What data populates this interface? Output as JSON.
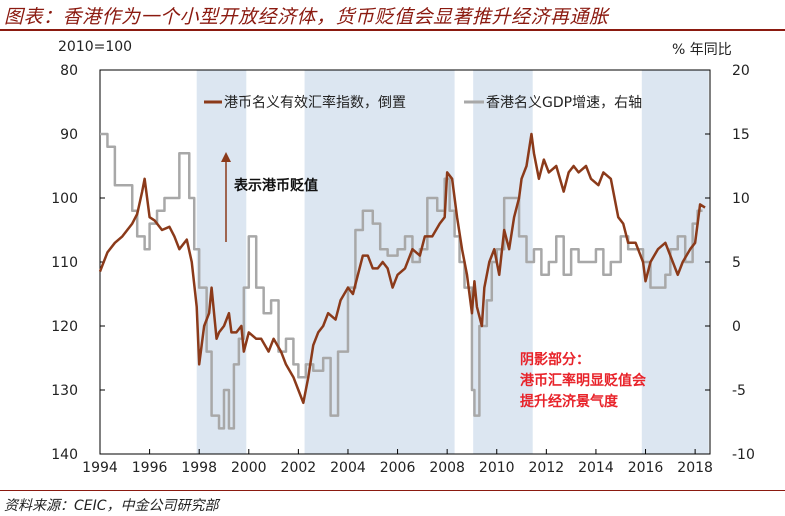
{
  "title": "图表：香港作为一个小型开放经济体，货币贬值会显著推升经济再通胀",
  "left_corner_label": "2010=100",
  "right_corner_label": "% 年同比",
  "source": "资料来源：CEIC，中金公司研究部",
  "colors": {
    "title": "#8b1a10",
    "heer": "#8b3a1a",
    "gdp": "#a8a8a8",
    "shade": "#dce6f1",
    "note": "#e8232a"
  },
  "chart_data": {
    "type": "line",
    "xlim": [
      1994,
      2018.6
    ],
    "x_ticks": [
      "1994",
      "1996",
      "1998",
      "2000",
      "2002",
      "2004",
      "2006",
      "2008",
      "2010",
      "2012",
      "2014",
      "2016",
      "2018"
    ],
    "left_axis": {
      "ylim": [
        80,
        140
      ],
      "inverted": true,
      "ticks": [
        "80",
        "90",
        "100",
        "110",
        "120",
        "130",
        "140"
      ]
    },
    "right_axis": {
      "ylim": [
        -10,
        20
      ],
      "ticks": [
        "20",
        "15",
        "10",
        "5",
        "0",
        "-5",
        "-10"
      ]
    },
    "legend": [
      "港币名义有效汇率指数，倒置",
      "香港名义GDP增速，右轴"
    ],
    "shaded_periods": [
      [
        1997.9,
        1999.9
      ],
      [
        2002.25,
        2008.3
      ],
      [
        2009.05,
        2011.45
      ],
      [
        2015.85,
        2018.55
      ]
    ],
    "annotation_arrow_label": "表示港币贬值",
    "shade_note": [
      "阴影部分：",
      "港币汇率明显贬值会",
      "提升经济景气度"
    ],
    "series": [
      {
        "name": "港币名义有效汇率指数，倒置",
        "axis": "left",
        "points": [
          [
            1994.0,
            111.5
          ],
          [
            1994.3,
            108.5
          ],
          [
            1994.6,
            107
          ],
          [
            1994.9,
            106
          ],
          [
            1995.1,
            105
          ],
          [
            1995.3,
            104
          ],
          [
            1995.5,
            102.5
          ],
          [
            1995.7,
            99
          ],
          [
            1995.8,
            97
          ],
          [
            1996.0,
            103
          ],
          [
            1996.2,
            103.5
          ],
          [
            1996.5,
            105
          ],
          [
            1996.8,
            104.5
          ],
          [
            1997.0,
            106
          ],
          [
            1997.2,
            108
          ],
          [
            1997.5,
            106.5
          ],
          [
            1997.7,
            110
          ],
          [
            1997.9,
            117
          ],
          [
            1998.0,
            126
          ],
          [
            1998.1,
            123
          ],
          [
            1998.2,
            120
          ],
          [
            1998.4,
            118
          ],
          [
            1998.5,
            114
          ],
          [
            1998.6,
            118
          ],
          [
            1998.7,
            122
          ],
          [
            1998.8,
            121
          ],
          [
            1999.0,
            120
          ],
          [
            1999.2,
            118
          ],
          [
            1999.3,
            121
          ],
          [
            1999.5,
            121
          ],
          [
            1999.7,
            120
          ],
          [
            1999.8,
            124
          ],
          [
            2000.0,
            121
          ],
          [
            2000.3,
            122
          ],
          [
            2000.5,
            122
          ],
          [
            2000.8,
            124
          ],
          [
            2001.0,
            122
          ],
          [
            2001.3,
            124
          ],
          [
            2001.5,
            126
          ],
          [
            2001.8,
            128
          ],
          [
            2002.0,
            130
          ],
          [
            2002.2,
            132
          ],
          [
            2002.4,
            128
          ],
          [
            2002.6,
            123
          ],
          [
            2002.8,
            121
          ],
          [
            2003.0,
            120
          ],
          [
            2003.2,
            118
          ],
          [
            2003.5,
            119
          ],
          [
            2003.7,
            116
          ],
          [
            2004.0,
            114
          ],
          [
            2004.2,
            115
          ],
          [
            2004.4,
            112
          ],
          [
            2004.6,
            109
          ],
          [
            2004.8,
            109
          ],
          [
            2005.0,
            111
          ],
          [
            2005.2,
            111
          ],
          [
            2005.4,
            110
          ],
          [
            2005.6,
            111
          ],
          [
            2005.8,
            114
          ],
          [
            2006.0,
            112
          ],
          [
            2006.3,
            111
          ],
          [
            2006.6,
            108
          ],
          [
            2006.9,
            109
          ],
          [
            2007.1,
            106
          ],
          [
            2007.4,
            106
          ],
          [
            2007.7,
            104
          ],
          [
            2007.9,
            103
          ],
          [
            2008.0,
            96
          ],
          [
            2008.2,
            97
          ],
          [
            2008.4,
            103
          ],
          [
            2008.6,
            108
          ],
          [
            2008.8,
            112
          ],
          [
            2009.0,
            118
          ],
          [
            2009.1,
            113
          ],
          [
            2009.2,
            117
          ],
          [
            2009.4,
            120
          ],
          [
            2009.5,
            114
          ],
          [
            2009.7,
            110
          ],
          [
            2009.9,
            108
          ],
          [
            2010.1,
            112
          ],
          [
            2010.3,
            105
          ],
          [
            2010.5,
            108
          ],
          [
            2010.7,
            103
          ],
          [
            2010.9,
            100
          ],
          [
            2011.0,
            97
          ],
          [
            2011.2,
            95
          ],
          [
            2011.4,
            90
          ],
          [
            2011.5,
            93
          ],
          [
            2011.7,
            97
          ],
          [
            2011.9,
            94
          ],
          [
            2012.1,
            96
          ],
          [
            2012.4,
            95
          ],
          [
            2012.7,
            99
          ],
          [
            2012.9,
            96
          ],
          [
            2013.1,
            95
          ],
          [
            2013.3,
            96
          ],
          [
            2013.6,
            95
          ],
          [
            2013.8,
            97
          ],
          [
            2014.1,
            98
          ],
          [
            2014.3,
            96
          ],
          [
            2014.6,
            97
          ],
          [
            2014.9,
            103
          ],
          [
            2015.1,
            104
          ],
          [
            2015.3,
            107
          ],
          [
            2015.6,
            107
          ],
          [
            2015.9,
            110
          ],
          [
            2016.0,
            113
          ],
          [
            2016.2,
            110
          ],
          [
            2016.5,
            108
          ],
          [
            2016.8,
            107
          ],
          [
            2017.0,
            109
          ],
          [
            2017.3,
            112
          ],
          [
            2017.5,
            110
          ],
          [
            2017.8,
            108
          ],
          [
            2018.0,
            107
          ],
          [
            2018.2,
            101
          ],
          [
            2018.4,
            101.5
          ]
        ]
      },
      {
        "name": "香港名义GDP增速，右轴",
        "axis": "right",
        "points": [
          [
            1994.0,
            15
          ],
          [
            1994.3,
            14
          ],
          [
            1994.6,
            11
          ],
          [
            1995.0,
            11
          ],
          [
            1995.3,
            9
          ],
          [
            1995.5,
            7
          ],
          [
            1995.8,
            6
          ],
          [
            1996.0,
            8
          ],
          [
            1996.3,
            9
          ],
          [
            1996.6,
            10
          ],
          [
            1997.0,
            10
          ],
          [
            1997.2,
            13.5
          ],
          [
            1997.4,
            13.5
          ],
          [
            1997.6,
            10
          ],
          [
            1997.8,
            6
          ],
          [
            1998.0,
            3
          ],
          [
            1998.3,
            -2
          ],
          [
            1998.5,
            -7
          ],
          [
            1998.8,
            -8
          ],
          [
            1999.0,
            -5
          ],
          [
            1999.2,
            -8
          ],
          [
            1999.4,
            -3
          ],
          [
            1999.6,
            -1
          ],
          [
            1999.8,
            3
          ],
          [
            2000.0,
            7
          ],
          [
            2000.3,
            3
          ],
          [
            2000.6,
            1
          ],
          [
            2000.9,
            2
          ],
          [
            2001.2,
            -2
          ],
          [
            2001.5,
            -1
          ],
          [
            2001.8,
            -3
          ],
          [
            2002.0,
            -4
          ],
          [
            2002.3,
            -3
          ],
          [
            2002.6,
            -3.5
          ],
          [
            2003.0,
            -2.5
          ],
          [
            2003.3,
            -7
          ],
          [
            2003.6,
            -2
          ],
          [
            2004.0,
            3
          ],
          [
            2004.3,
            7.5
          ],
          [
            2004.6,
            9
          ],
          [
            2005.0,
            8
          ],
          [
            2005.3,
            6
          ],
          [
            2005.6,
            5.5
          ],
          [
            2006.0,
            6
          ],
          [
            2006.3,
            7
          ],
          [
            2006.6,
            5
          ],
          [
            2006.9,
            6
          ],
          [
            2007.2,
            10
          ],
          [
            2007.6,
            9
          ],
          [
            2007.9,
            11.5
          ],
          [
            2008.1,
            9
          ],
          [
            2008.3,
            7
          ],
          [
            2008.5,
            5
          ],
          [
            2008.7,
            3
          ],
          [
            2009.0,
            -5
          ],
          [
            2009.1,
            -7
          ],
          [
            2009.3,
            0
          ],
          [
            2009.6,
            2
          ],
          [
            2009.8,
            5
          ],
          [
            2010.0,
            6
          ],
          [
            2010.3,
            10
          ],
          [
            2010.6,
            10
          ],
          [
            2010.9,
            7
          ],
          [
            2011.2,
            5
          ],
          [
            2011.5,
            6
          ],
          [
            2011.8,
            4
          ],
          [
            2012.1,
            5
          ],
          [
            2012.4,
            7
          ],
          [
            2012.7,
            4
          ],
          [
            2013.0,
            6
          ],
          [
            2013.3,
            5
          ],
          [
            2013.6,
            5
          ],
          [
            2014.0,
            6
          ],
          [
            2014.3,
            4
          ],
          [
            2014.6,
            5
          ],
          [
            2015.0,
            7
          ],
          [
            2015.3,
            6
          ],
          [
            2015.6,
            6
          ],
          [
            2015.9,
            5
          ],
          [
            2016.2,
            3
          ],
          [
            2016.5,
            3
          ],
          [
            2016.8,
            4
          ],
          [
            2017.0,
            6
          ],
          [
            2017.3,
            7
          ],
          [
            2017.6,
            5
          ],
          [
            2017.9,
            8
          ],
          [
            2018.1,
            9
          ],
          [
            2018.3,
            9
          ]
        ]
      }
    ]
  }
}
